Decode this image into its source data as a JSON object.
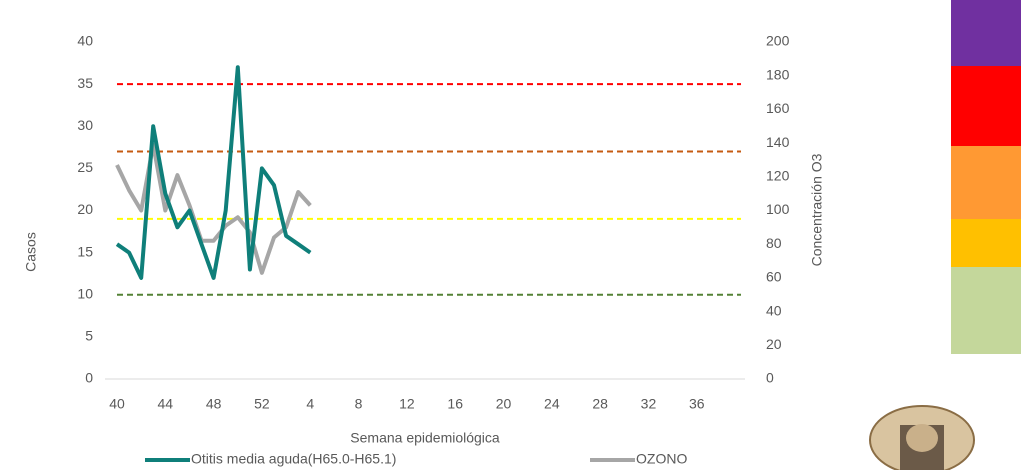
{
  "chart_data": {
    "type": "line",
    "x_label": "Semana epidemiológica",
    "y_label": "Casos",
    "y2_label": "Concentración O3",
    "categories": [
      "40",
      null,
      null,
      null,
      "44",
      null,
      null,
      null,
      "48",
      null,
      null,
      null,
      "52",
      null,
      null,
      null,
      "4",
      null,
      null,
      null,
      "8",
      null,
      null,
      null,
      "12",
      null,
      null,
      null,
      "16",
      null,
      null,
      null,
      "20",
      null,
      null,
      null,
      "24",
      null,
      null,
      null,
      "28",
      null,
      null,
      null,
      "32",
      null,
      null,
      null,
      "36",
      null,
      null,
      null
    ],
    "series": [
      {
        "name": "Otitis media aguda(H65.0-H65.1)",
        "color": "#0f7f7a",
        "axis": "y",
        "values": [
          16,
          15,
          12,
          30,
          22,
          18,
          20,
          16,
          12,
          20,
          37,
          13,
          25,
          23,
          17,
          16,
          15,
          null,
          null,
          null,
          null,
          null,
          null,
          null,
          null,
          null,
          null,
          null,
          null,
          null,
          null,
          null,
          null,
          null,
          null,
          null,
          null,
          null,
          null,
          null,
          null,
          null,
          null,
          null,
          null,
          null,
          null,
          null,
          null,
          null,
          null,
          null
        ]
      },
      {
        "name": "OZONO",
        "color": "#a6a6a6",
        "axis": "y2",
        "values": [
          127,
          112,
          100,
          139,
          100,
          121,
          103,
          82,
          82,
          91,
          96,
          87,
          63,
          84,
          90,
          111,
          103,
          null,
          null,
          null,
          null,
          null,
          null,
          null,
          null,
          null,
          null,
          null,
          null,
          null,
          null,
          null,
          null,
          null,
          null,
          null,
          null,
          null,
          null,
          null,
          null,
          null,
          null,
          null,
          null,
          null,
          null,
          null,
          null,
          null,
          null,
          null
        ]
      }
    ],
    "ylim": [
      0,
      40
    ],
    "yticks": [
      0,
      5,
      10,
      15,
      20,
      25,
      30,
      35,
      40
    ],
    "y2lim": [
      0,
      200
    ],
    "y2ticks": [
      0,
      20,
      40,
      60,
      80,
      100,
      120,
      140,
      160,
      180,
      200
    ],
    "reference_lines": [
      {
        "value": 35,
        "color": "#ff0000"
      },
      {
        "value": 27,
        "color": "#c55a11"
      },
      {
        "value": 19,
        "color": "#ffff00"
      },
      {
        "value": 10,
        "color": "#548235"
      }
    ]
  }
}
